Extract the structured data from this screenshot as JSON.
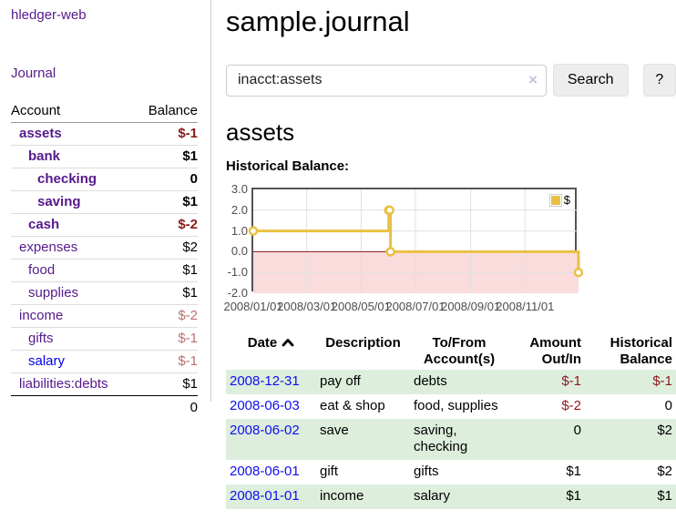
{
  "app": {
    "brand": "hledger-web",
    "nav_journal": "Journal"
  },
  "sidebar": {
    "header": {
      "account": "Account",
      "balance": "Balance"
    },
    "accounts": [
      {
        "name": "assets",
        "balance": "$-1",
        "depth": 1,
        "bold": true,
        "negative": "strong"
      },
      {
        "name": "bank",
        "balance": "$1",
        "depth": 2,
        "bold": true
      },
      {
        "name": "checking",
        "balance": "0",
        "depth": 3,
        "bold": true
      },
      {
        "name": "saving",
        "balance": "$1",
        "depth": 3,
        "bold": true
      },
      {
        "name": "cash",
        "balance": "$-2",
        "depth": 2,
        "bold": true,
        "negative": "strong"
      },
      {
        "name": "expenses",
        "balance": "$2",
        "depth": 1
      },
      {
        "name": "food",
        "balance": "$1",
        "depth": 2
      },
      {
        "name": "supplies",
        "balance": "$1",
        "depth": 2
      },
      {
        "name": "income",
        "balance": "$-2",
        "depth": 1,
        "negative": "soft"
      },
      {
        "name": "gifts",
        "balance": "$-1",
        "depth": 2,
        "negative": "soft"
      },
      {
        "name": "salary",
        "balance": "$-1",
        "depth": 2,
        "negative": "soft",
        "link_style": "unvisited"
      },
      {
        "name": "liabilities:debts",
        "balance": "$1",
        "depth": 1
      }
    ],
    "total": "0"
  },
  "page": {
    "title": "sample.journal"
  },
  "search": {
    "query": "inacct:assets",
    "clear_icon": "×",
    "search_button": "Search",
    "help_button": "?"
  },
  "account_view": {
    "heading": "assets",
    "chart_label": "Historical Balance:"
  },
  "chart_data": {
    "type": "line",
    "title": "Historical Balance:",
    "series": [
      {
        "name": "$",
        "color": "#e9c044",
        "step": true,
        "points": [
          [
            "2008-01-01",
            1
          ],
          [
            "2008-06-01",
            2
          ],
          [
            "2008-06-02",
            2
          ],
          [
            "2008-06-03",
            0
          ],
          [
            "2008-12-31",
            -1
          ]
        ]
      }
    ],
    "x_range": [
      "2008-01-01",
      "2008-12-31"
    ],
    "ylim": [
      -2,
      3
    ],
    "yticks": [
      "3.0",
      "2.0",
      "1.0",
      "0.0",
      "-1.0",
      "-2.0"
    ],
    "xticks": [
      {
        "label": "2008/01/01",
        "date": "2008-01-01"
      },
      {
        "label": "2008/03/01",
        "date": "2008-03-01"
      },
      {
        "label": "2008/05/01",
        "date": "2008-05-01"
      },
      {
        "label": "2008/07/01",
        "date": "2008-07-01"
      },
      {
        "label": "2008/09/01",
        "date": "2008-09-01"
      },
      {
        "label": "2008/11/01",
        "date": "2008-11-01"
      }
    ],
    "grid": true,
    "legend": {
      "label": "$",
      "position": "top-right"
    },
    "negative_region_color": "#fadcdc",
    "zero_line_color": "#871717",
    "grid_color": "#e0e0e0",
    "border_color": "#545454"
  },
  "register": {
    "columns": [
      {
        "line1": "Date",
        "line2": "",
        "align": "left",
        "sorted": "asc"
      },
      {
        "line1": "Description",
        "line2": "",
        "align": "left"
      },
      {
        "line1": "To/From",
        "line2": "Account(s)",
        "align": "left"
      },
      {
        "line1": "Amount",
        "line2": "Out/In",
        "align": "right"
      },
      {
        "line1": "Historical",
        "line2": "Balance",
        "align": "right"
      }
    ],
    "rows": [
      {
        "date": "2008-12-31",
        "description": "pay off",
        "accounts": "debts",
        "amount": "$-1",
        "balance": "$-1"
      },
      {
        "date": "2008-06-03",
        "description": "eat & shop",
        "accounts": "food, supplies",
        "amount": "$-2",
        "balance": "0"
      },
      {
        "date": "2008-06-02",
        "description": "save",
        "accounts": "saving, checking",
        "amount": "0",
        "balance": "$2"
      },
      {
        "date": "2008-06-01",
        "description": "gift",
        "accounts": "gifts",
        "amount": "$1",
        "balance": "$2"
      },
      {
        "date": "2008-01-01",
        "description": "income",
        "accounts": "salary",
        "amount": "$1",
        "balance": "$1"
      }
    ]
  },
  "colors": {
    "link_visited": "#551a8b",
    "link_unvisited": "#0000ee",
    "date_link": "#0f0fee",
    "negative_strong": "#8b1a1a",
    "negative_soft": "#bb6f6f",
    "row_stripe": "#ddeedd",
    "series_gold": "#e9c044"
  }
}
